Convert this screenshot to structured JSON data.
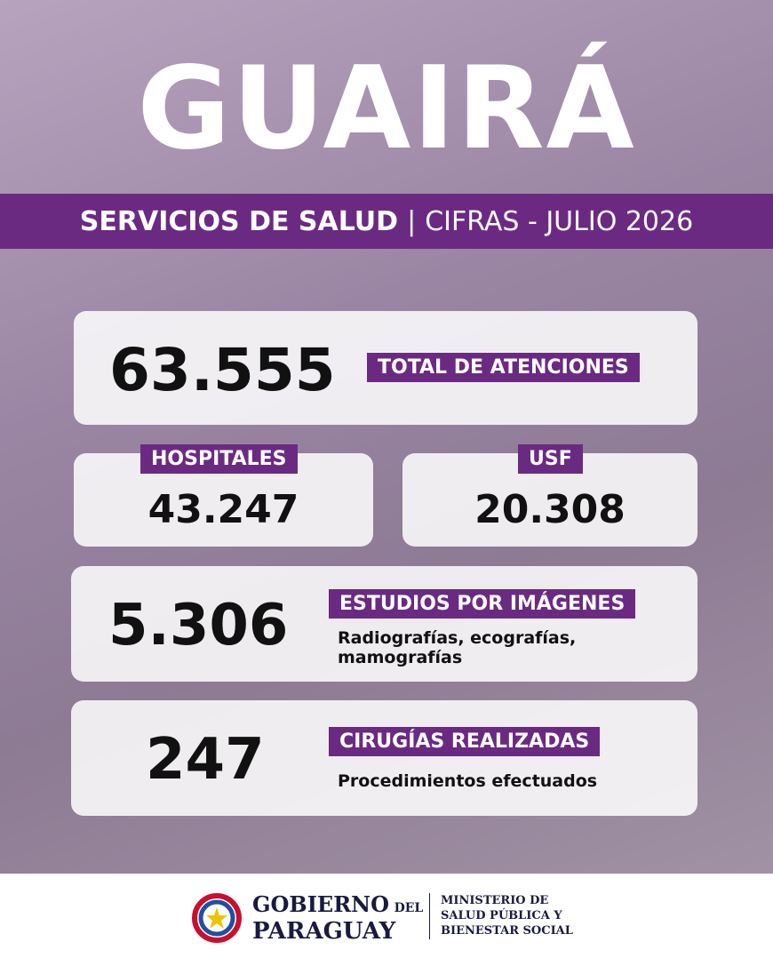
{
  "header": {
    "title": "GUAIRÁ",
    "banner_bold": "SERVICIOS DE SALUD",
    "separator": "|",
    "banner_light": "CIFRAS - JULIO 2026"
  },
  "cards": {
    "total": {
      "value": "63.555",
      "label": "TOTAL DE ATENCIONES"
    },
    "hospitals": {
      "label": "HOSPITALES",
      "value": "43.247"
    },
    "usf": {
      "label": "USF",
      "value": "20.308"
    },
    "imaging": {
      "value": "5.306",
      "label": "ESTUDIOS POR IMÁGENES",
      "note": "Radiografías, ecografías, mamografías"
    },
    "surgeries": {
      "value": "247",
      "label": "CIRUGÍAS REALIZADAS",
      "note": "Procedimientos efectuados"
    }
  },
  "footer": {
    "gov_line1": "GOBIERNO",
    "gov_del": "DEL",
    "gov_line2": "PARAGUAY",
    "ministry": [
      "MINISTERIO DE",
      "SALUD PÚBLICA Y",
      "BIENESTAR SOCIAL"
    ]
  }
}
